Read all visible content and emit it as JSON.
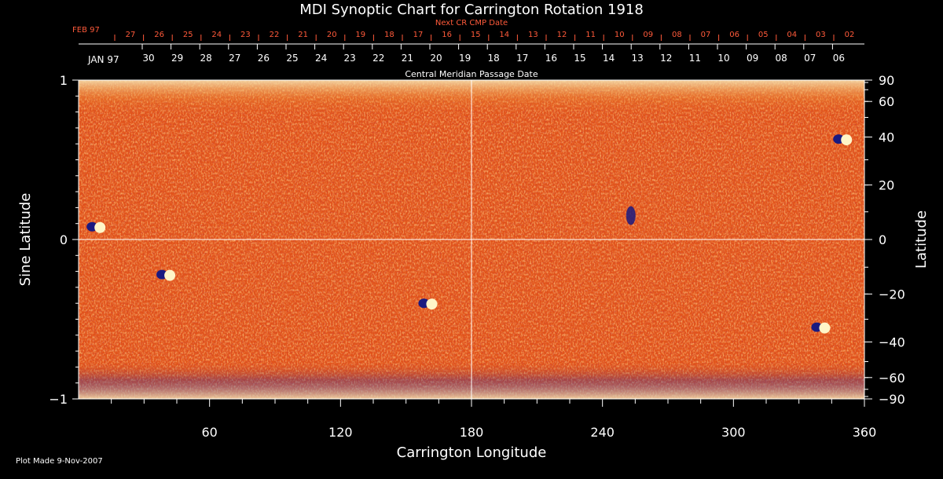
{
  "chart_data": {
    "type": "heatmap",
    "title": "MDI Synoptic Chart for Carrington Rotation 1918",
    "xlabel": "Carrington Longitude",
    "ylabel_left": "Sine Latitude",
    "ylabel_right": "Latitude",
    "xlim": [
      0,
      360
    ],
    "ylim": [
      -1,
      1
    ],
    "x_ticks": [
      60,
      120,
      180,
      240,
      300,
      360
    ],
    "y_ticks_left": [
      {
        "value": 1,
        "label": "1"
      },
      {
        "value": 0,
        "label": "0"
      },
      {
        "value": -1,
        "label": "−1"
      }
    ],
    "y_ticks_right": [
      {
        "deg": 90,
        "label": "90"
      },
      {
        "deg": 60,
        "label": "60"
      },
      {
        "deg": 40,
        "label": "40"
      },
      {
        "deg": 20,
        "label": "20"
      },
      {
        "deg": 0,
        "label": "0"
      },
      {
        "deg": -20,
        "label": "−20"
      },
      {
        "deg": -40,
        "label": "−40"
      },
      {
        "deg": -60,
        "label": "−60"
      },
      {
        "deg": -90,
        "label": "−90"
      }
    ],
    "cmp_axis": {
      "label": "Central Meridian Passage Date",
      "month_label": "JAN 97",
      "dates": [
        "30",
        "29",
        "28",
        "27",
        "26",
        "25",
        "24",
        "23",
        "22",
        "21",
        "20",
        "19",
        "18",
        "17",
        "16",
        "15",
        "14",
        "13",
        "12",
        "11",
        "10",
        "09",
        "08",
        "07",
        "06"
      ]
    },
    "next_cr_axis": {
      "label": "Next CR CMP Date",
      "month_label": "FEB 97",
      "dates": [
        "27",
        "26",
        "25",
        "24",
        "23",
        "22",
        "21",
        "20",
        "19",
        "18",
        "17",
        "16",
        "15",
        "14",
        "13",
        "12",
        "11",
        "10",
        "09",
        "08",
        "07",
        "06",
        "05",
        "04",
        "03",
        "02"
      ]
    },
    "active_regions": [
      {
        "lon": 8,
        "sinlat": 0.08,
        "polarity": "bipolar"
      },
      {
        "lon": 40,
        "sinlat": -0.22,
        "polarity": "bipolar"
      },
      {
        "lon": 160,
        "sinlat": -0.4,
        "polarity": "bipolar"
      },
      {
        "lon": 253,
        "sinlat": 0.15,
        "polarity": "negative"
      },
      {
        "lon": 340,
        "sinlat": -0.55,
        "polarity": "bipolar"
      },
      {
        "lon": 350,
        "sinlat": 0.63,
        "polarity": "bipolar"
      }
    ],
    "colors": {
      "background_field": "#e2531a",
      "positive_field": "#fff6c8",
      "negative_field": "#1a1a80",
      "next_cr_text": "#ff5a3a",
      "axes": "#ffffff"
    }
  },
  "footer": {
    "plot_made": "Plot Made  9-Nov-2007"
  }
}
